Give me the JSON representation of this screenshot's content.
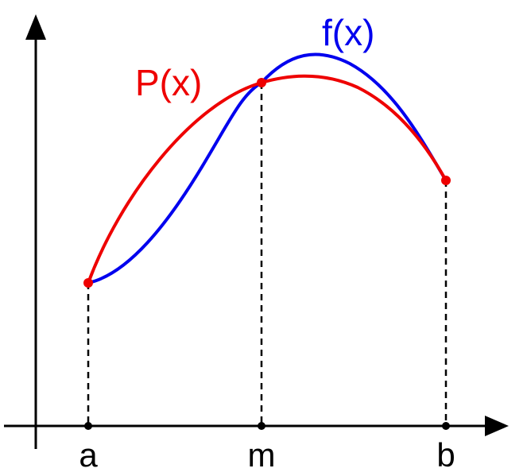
{
  "labels": {
    "a": "a",
    "m": "m",
    "b": "b",
    "f": "f(x)",
    "p": "P(x)"
  },
  "colors": {
    "axis": "#000000",
    "f_curve": "#0000ee",
    "p_curve": "#ee0000",
    "points": "#ee0000",
    "dashes": "#000000"
  }
}
